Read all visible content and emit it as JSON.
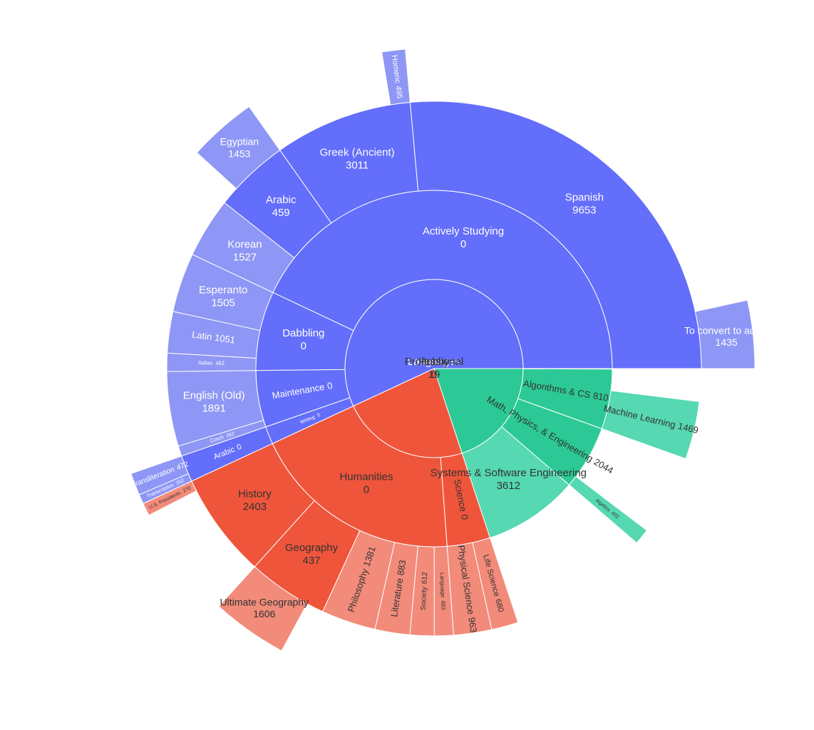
{
  "chart_data": {
    "type": "sunburst",
    "nodes": [
      {
        "label": "Languages",
        "value": 0,
        "color": "#636efa",
        "leaf_color": "#8e97f5",
        "text_color": "#ffffff",
        "children": [
          {
            "label": "Actively Studying",
            "value": 0,
            "children": [
              {
                "label": "Spanish",
                "value": 9653,
                "children": [
                  {
                    "label": "To convert to audio",
                    "value": 1435
                  }
                ]
              },
              {
                "label": "Greek (Ancient)",
                "value": 3011,
                "children": [
                  {
                    "label": "Homeric",
                    "value": 495
                  }
                ]
              },
              {
                "label": "Arabic",
                "value": 459,
                "children": [
                  {
                    "label": "Egyptian",
                    "value": 1453
                  }
                ]
              },
              {
                "label": "Korean",
                "value": 1527
              }
            ]
          },
          {
            "label": "Dabbling",
            "value": 0,
            "children": [
              {
                "label": "Esperanto",
                "value": 1505
              },
              {
                "label": "Latin",
                "value": 1051
              },
              {
                "label": "Italian",
                "value": 462
              }
            ]
          },
          {
            "label": "Maintenance",
            "value": 0,
            "children": [
              {
                "label": "English (Old)",
                "value": 1891
              },
              {
                "label": "Czech",
                "value": 262
              }
            ]
          },
          {
            "label": "Writing",
            "value": 0,
            "children": [
              {
                "label": "Arabic",
                "value": 0,
                "children": [
                  {
                    "label": "Transliteration",
                    "value": 472
                  },
                  {
                    "label": "Transcription",
                    "value": 202
                  }
                ]
              }
            ]
          }
        ]
      },
      {
        "label": "Hobby",
        "value": 0,
        "color": "#ef553b",
        "leaf_color": "#f28b7a",
        "text_color": "#333333",
        "children": [
          {
            "label": "Humanities",
            "value": 0,
            "children": [
              {
                "label": "History",
                "value": 2403,
                "children": [
                  {
                    "label": "U.S. Presidents",
                    "value": 270
                  }
                ]
              },
              {
                "label": "Geography",
                "value": 437,
                "children": [
                  {
                    "label": "Ultimate Geography",
                    "value": 1606
                  }
                ]
              },
              {
                "label": "Philosophy",
                "value": 1381
              },
              {
                "label": "Literature",
                "value": 883
              },
              {
                "label": "Society",
                "value": 612
              },
              {
                "label": "Language",
                "value": 483
              }
            ]
          },
          {
            "label": "Science",
            "value": 0,
            "children": [
              {
                "label": "Physical Science",
                "value": 963
              },
              {
                "label": "Life Science",
                "value": 680
              }
            ]
          }
        ]
      },
      {
        "label": "Professional",
        "value": 19,
        "color": "#2cc996",
        "leaf_color": "#56d8b2",
        "text_color": "#333333",
        "children": [
          {
            "label": "Systems & Software Engineering",
            "value": 3612
          },
          {
            "label": "Math, Physics, & Engineering",
            "value": 2044,
            "children": [
              {
                "label": "Algebra",
                "value": 402
              }
            ]
          },
          {
            "label": "Algorithms & CS",
            "value": 810,
            "children": [
              {
                "label": "Machine Learning",
                "value": 1469
              }
            ]
          }
        ]
      }
    ]
  }
}
